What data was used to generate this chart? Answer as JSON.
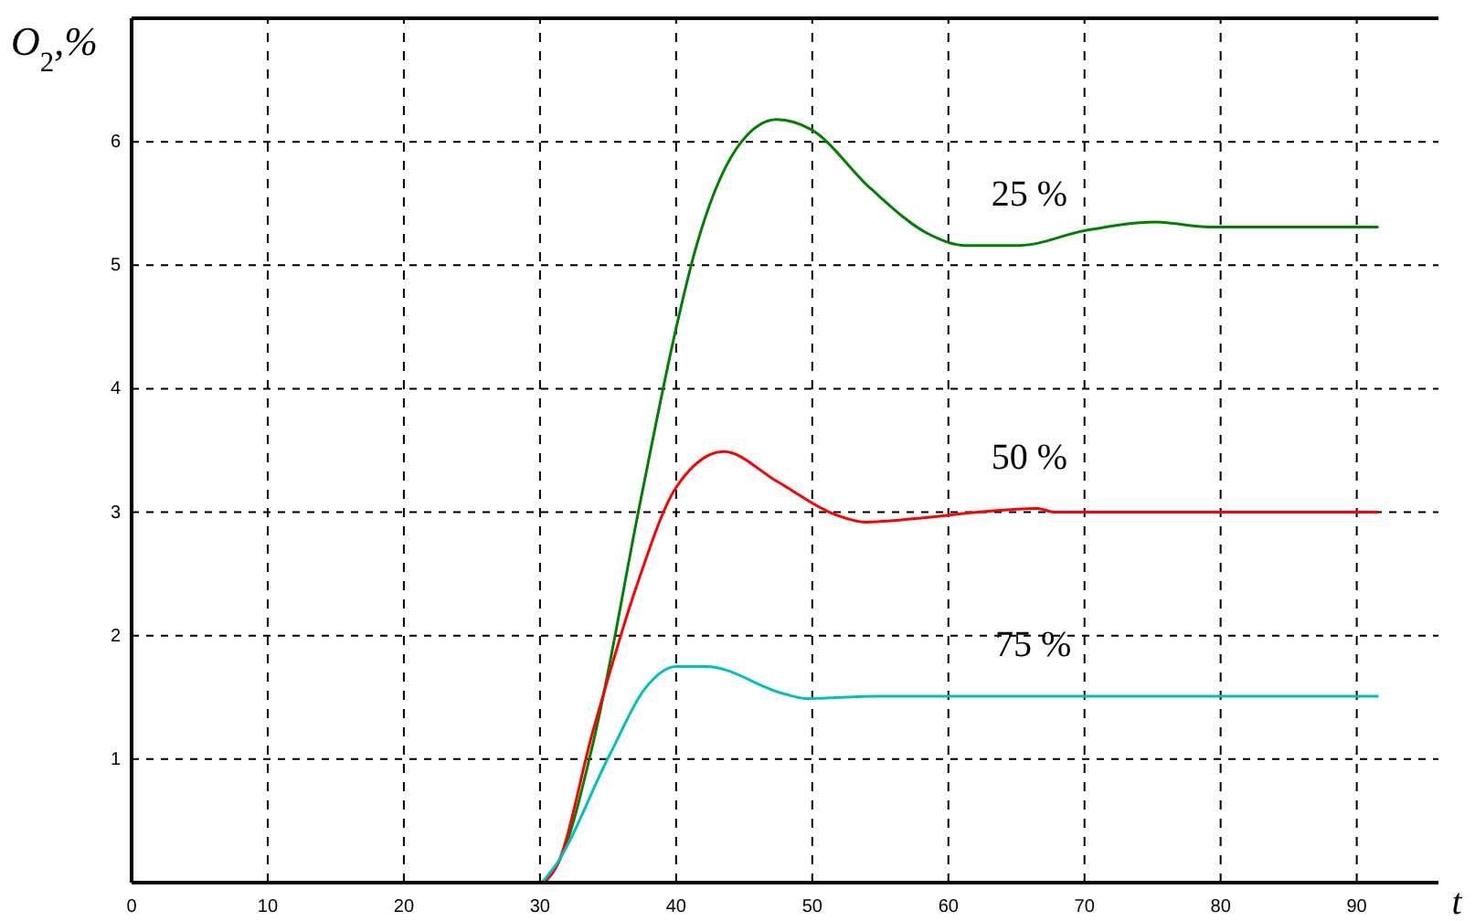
{
  "chart_data": {
    "type": "line",
    "xlabel": "t",
    "ylabel": "O$_{2}$,%",
    "xlim": [
      0,
      96
    ],
    "ylim": [
      0,
      7
    ],
    "xticks": [
      0,
      10,
      20,
      30,
      40,
      50,
      60,
      70,
      80,
      90
    ],
    "yticks": [
      1,
      2,
      3,
      4,
      5,
      6
    ],
    "grid": true,
    "series": [
      {
        "name": "25 %",
        "color": "#008000",
        "x": [
          0,
          30,
          31.6,
          33.9,
          37.4,
          40.0,
          41.3,
          44.8,
          47.4,
          49.9,
          54.3,
          58.6,
          61.2,
          65.2,
          70.0,
          75.2,
          79.2,
          91.6
        ],
        "values": [
          0,
          0,
          0.22,
          1.13,
          3.1,
          4.49,
          5.08,
          6.0,
          6.18,
          6.1,
          5.62,
          5.25,
          5.16,
          5.16,
          5.28,
          5.35,
          5.31,
          5.31
        ]
      },
      {
        "name": "50 %",
        "color": "#ff0000",
        "x": [
          0,
          30,
          31.2,
          33.9,
          37.0,
          40.0,
          43.5,
          47.4,
          51.7,
          53.9,
          57.8,
          62.2,
          66.5,
          67.8,
          91.6
        ],
        "values": [
          0,
          0,
          0.13,
          1.23,
          2.37,
          3.2,
          3.49,
          3.25,
          2.98,
          2.92,
          2.95,
          3.0,
          3.03,
          3.0,
          3.0
        ]
      },
      {
        "name": "75 %",
        "color": "#00c0c0",
        "x": [
          1,
          30,
          30.8,
          35.1,
          37.7,
          40.0,
          42.2,
          47.9,
          49.6,
          54.8,
          91.6
        ],
        "values": [
          0,
          0,
          0.09,
          1.03,
          1.57,
          1.75,
          1.75,
          1.53,
          1.49,
          1.51,
          1.51
        ]
      }
    ]
  }
}
